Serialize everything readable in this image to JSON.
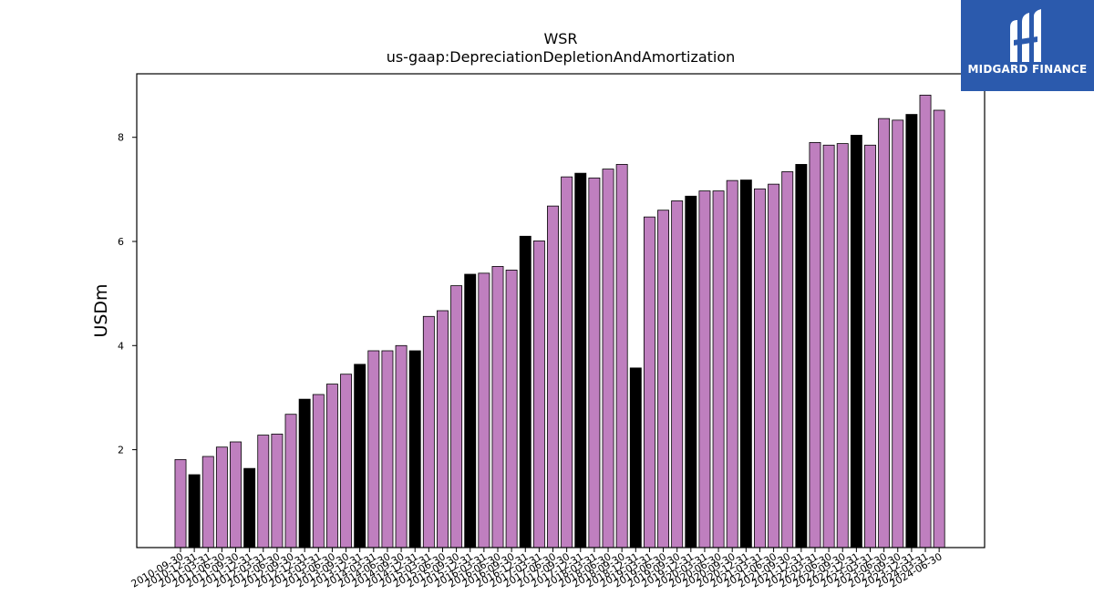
{
  "logo": {
    "text": "MIDGARD FINANCE",
    "icon": "midgard-logo-icon",
    "background": "#2b5aad"
  },
  "chart_data": {
    "type": "bar",
    "title": "WSR",
    "subtitle": "us-gaap:DepreciationDepletionAndAmortization",
    "ylabel": "USDm",
    "xlabel": "",
    "ylim": [
      0.12,
      9.22
    ],
    "yticks": [
      2,
      4,
      6,
      8
    ],
    "grid": false,
    "colors": {
      "quarterly": "#bf7fbf",
      "annual": "#000000",
      "edge": "#000000"
    },
    "categories": [
      "2010-09-30",
      "2010-12-31",
      "2011-03-31",
      "2011-06-30",
      "2011-09-30",
      "2011-12-31",
      "2012-03-31",
      "2012-06-30",
      "2012-09-30",
      "2012-12-31",
      "2013-03-31",
      "2013-06-30",
      "2013-09-30",
      "2013-12-31",
      "2014-03-31",
      "2014-06-30",
      "2014-09-30",
      "2014-12-31",
      "2015-03-31",
      "2015-06-30",
      "2015-09-30",
      "2015-12-31",
      "2016-03-31",
      "2016-06-30",
      "2016-09-30",
      "2016-12-31",
      "2017-03-31",
      "2017-06-30",
      "2017-09-30",
      "2017-12-31",
      "2018-03-31",
      "2018-06-30",
      "2018-09-30",
      "2018-12-31",
      "2019-03-31",
      "2019-06-30",
      "2019-09-30",
      "2019-12-31",
      "2020-03-31",
      "2020-06-30",
      "2020-09-30",
      "2020-12-31",
      "2021-03-31",
      "2021-06-30",
      "2021-09-30",
      "2021-12-31",
      "2022-03-31",
      "2022-06-30",
      "2022-09-30",
      "2022-12-31",
      "2023-03-31",
      "2023-06-30",
      "2023-09-30",
      "2023-12-31",
      "2024-03-31",
      "2024-06-30"
    ],
    "values": [
      1.81,
      1.52,
      1.87,
      2.05,
      2.15,
      1.64,
      2.28,
      2.3,
      2.68,
      2.97,
      3.06,
      3.26,
      3.45,
      3.64,
      3.9,
      3.9,
      4.0,
      3.9,
      4.56,
      4.67,
      5.15,
      5.37,
      5.39,
      5.52,
      5.45,
      6.1,
      6.01,
      6.68,
      7.24,
      7.31,
      7.22,
      7.39,
      7.48,
      3.57,
      6.47,
      6.6,
      6.78,
      6.87,
      6.97,
      6.97,
      7.17,
      7.18,
      7.01,
      7.1,
      7.34,
      7.48,
      7.9,
      7.85,
      7.88,
      8.04,
      7.85,
      8.36,
      8.33,
      8.44,
      8.81,
      8.52
    ],
    "annual": [
      false,
      true,
      false,
      false,
      false,
      true,
      false,
      false,
      false,
      true,
      false,
      false,
      false,
      true,
      false,
      false,
      false,
      true,
      false,
      false,
      false,
      true,
      false,
      false,
      false,
      true,
      false,
      false,
      false,
      true,
      false,
      false,
      false,
      true,
      false,
      false,
      false,
      true,
      false,
      false,
      false,
      true,
      false,
      false,
      false,
      true,
      false,
      false,
      false,
      true,
      false,
      false,
      false,
      true,
      false,
      false
    ]
  }
}
